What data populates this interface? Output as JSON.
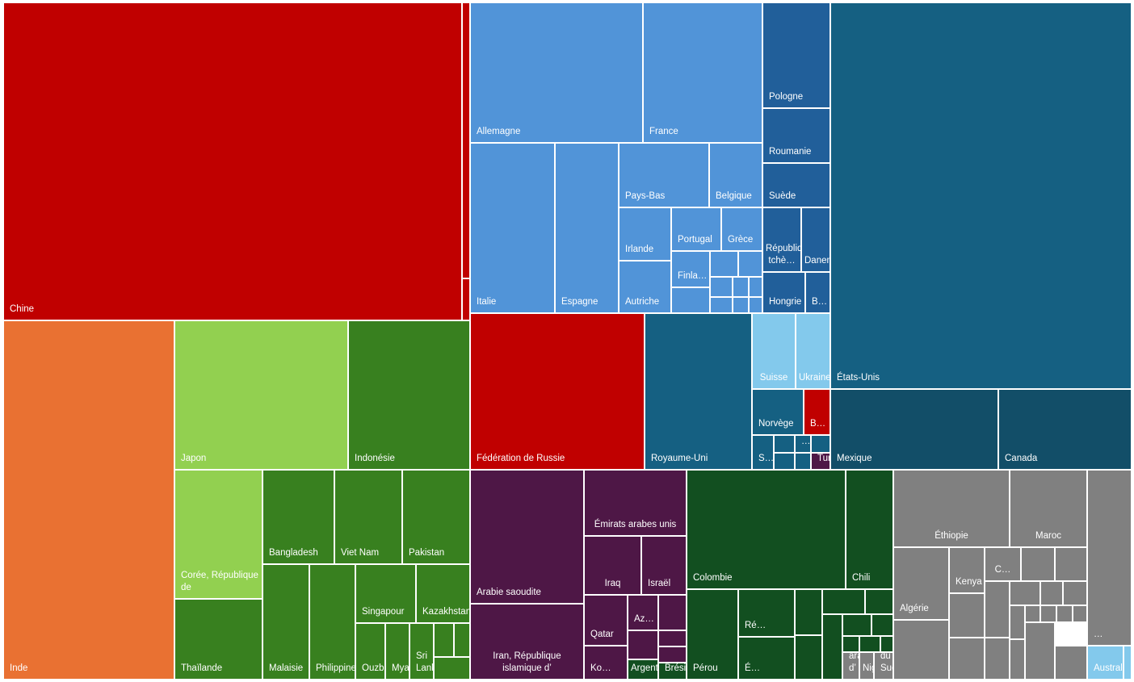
{
  "chart_data": {
    "type": "treemap",
    "colors": {
      "red": "#c00000",
      "orange": "#e97132",
      "lightgreen": "#92d050",
      "green": "#38801f",
      "lightblue": "#5194d8",
      "blue": "#215f9a",
      "teal": "#156082",
      "navy": "#124e68",
      "purple": "#4e1746",
      "darkgreen": "#124f20",
      "gray": "#808080",
      "skyblue": "#83c9ec"
    },
    "cells": [
      {
        "label": "Chine",
        "color": "red"
      },
      {
        "label": "",
        "color": "red"
      },
      {
        "label": "",
        "color": "red"
      },
      {
        "label": "Inde",
        "color": "orange"
      },
      {
        "label": "Japon",
        "color": "lightgreen"
      },
      {
        "label": "Indonésie",
        "color": "green"
      },
      {
        "label": "Corée, République de",
        "color": "lightgreen"
      },
      {
        "label": "Thaïlande",
        "color": "green"
      },
      {
        "label": "Bangladesh",
        "color": "green"
      },
      {
        "label": "Viet Nam",
        "color": "green"
      },
      {
        "label": "Pakistan",
        "color": "green"
      },
      {
        "label": "Malaisie",
        "color": "green"
      },
      {
        "label": "Philippines",
        "color": "green"
      },
      {
        "label": "Singapour",
        "color": "green"
      },
      {
        "label": "Kazakhstan",
        "color": "green"
      },
      {
        "label": "Ouzbé…",
        "color": "green"
      },
      {
        "label": "Mya…",
        "color": "green"
      },
      {
        "label": "Sri Lanka",
        "color": "green"
      },
      {
        "label": "",
        "color": "green"
      },
      {
        "label": "",
        "color": "green"
      },
      {
        "label": "",
        "color": "green"
      },
      {
        "label": "Allemagne",
        "color": "lightblue"
      },
      {
        "label": "France",
        "color": "lightblue"
      },
      {
        "label": "Italie",
        "color": "lightblue"
      },
      {
        "label": "Espagne",
        "color": "lightblue"
      },
      {
        "label": "Pays-Bas",
        "color": "lightblue"
      },
      {
        "label": "Belgique",
        "color": "lightblue"
      },
      {
        "label": "Irlande",
        "color": "lightblue"
      },
      {
        "label": "Autriche",
        "color": "lightblue"
      },
      {
        "label": "Portugal",
        "color": "lightblue"
      },
      {
        "label": "Grèce",
        "color": "lightblue"
      },
      {
        "label": "Finla…",
        "color": "lightblue"
      },
      {
        "label": "",
        "color": "lightblue"
      },
      {
        "label": "",
        "color": "lightblue"
      },
      {
        "label": "",
        "color": "lightblue"
      },
      {
        "label": "",
        "color": "lightblue"
      },
      {
        "label": "",
        "color": "lightblue"
      },
      {
        "label": "",
        "color": "lightblue"
      },
      {
        "label": "",
        "color": "lightblue"
      },
      {
        "label": "",
        "color": "lightblue"
      },
      {
        "label": "",
        "color": "lightblue"
      },
      {
        "label": "Pologne",
        "color": "blue"
      },
      {
        "label": "Roumanie",
        "color": "blue"
      },
      {
        "label": "Suède",
        "color": "blue"
      },
      {
        "label": "République tchè…",
        "color": "blue"
      },
      {
        "label": "Danemark",
        "color": "blue"
      },
      {
        "label": "Hongrie",
        "color": "blue"
      },
      {
        "label": "B…",
        "color": "blue"
      },
      {
        "label": "États-Unis",
        "color": "teal"
      },
      {
        "label": "Mexique",
        "color": "navy"
      },
      {
        "label": "Canada",
        "color": "navy"
      },
      {
        "label": "Fédération de Russie",
        "color": "red"
      },
      {
        "label": "Royaume-Uni",
        "color": "teal"
      },
      {
        "label": "Suisse",
        "color": "skyblue"
      },
      {
        "label": "Ukraine",
        "color": "skyblue"
      },
      {
        "label": "Norvège",
        "color": "teal"
      },
      {
        "label": "B…",
        "color": "red"
      },
      {
        "label": "S…",
        "color": "teal"
      },
      {
        "label": "",
        "color": "teal"
      },
      {
        "label": "",
        "color": "teal"
      },
      {
        "label": "…",
        "color": "teal"
      },
      {
        "label": "",
        "color": "teal"
      },
      {
        "label": "",
        "color": "teal"
      },
      {
        "label": "Turquie",
        "color": "purple"
      },
      {
        "label": "Arabie saoudite",
        "color": "purple"
      },
      {
        "label": "Iran, République islamique d’",
        "color": "purple"
      },
      {
        "label": "Émirats arabes unis",
        "color": "purple"
      },
      {
        "label": "Iraq",
        "color": "purple"
      },
      {
        "label": "Israël",
        "color": "purple"
      },
      {
        "label": "Qatar",
        "color": "purple"
      },
      {
        "label": "Ko…",
        "color": "purple"
      },
      {
        "label": "Az…",
        "color": "purple"
      },
      {
        "label": "",
        "color": "purple"
      },
      {
        "label": "",
        "color": "purple"
      },
      {
        "label": "",
        "color": "purple"
      },
      {
        "label": "",
        "color": "purple"
      },
      {
        "label": "Brésil",
        "color": "darkgreen"
      },
      {
        "label": "Argentine",
        "color": "darkgreen"
      },
      {
        "label": "Colombie",
        "color": "darkgreen"
      },
      {
        "label": "Chili",
        "color": "darkgreen"
      },
      {
        "label": "Pérou",
        "color": "darkgreen"
      },
      {
        "label": "Ré…",
        "color": "darkgreen"
      },
      {
        "label": "É…",
        "color": "darkgreen"
      },
      {
        "label": "",
        "color": "darkgreen"
      },
      {
        "label": "",
        "color": "darkgreen"
      },
      {
        "label": "",
        "color": "darkgreen"
      },
      {
        "label": "",
        "color": "darkgreen"
      },
      {
        "label": "",
        "color": "darkgreen"
      },
      {
        "label": "",
        "color": "darkgreen"
      },
      {
        "label": "",
        "color": "darkgreen"
      },
      {
        "label": "",
        "color": "darkgreen"
      },
      {
        "label": "",
        "color": "darkgreen"
      },
      {
        "label": "",
        "color": "darkgreen"
      },
      {
        "label": "Égypte, République arabe d’",
        "color": "gray"
      },
      {
        "label": "Nigéria",
        "color": "gray"
      },
      {
        "label": "Afrique du Sud",
        "color": "gray"
      },
      {
        "label": "Éthiopie",
        "color": "gray"
      },
      {
        "label": "Maroc",
        "color": "gray"
      },
      {
        "label": "Algérie",
        "color": "gray"
      },
      {
        "label": "Kenya",
        "color": "gray"
      },
      {
        "label": "",
        "color": "gray"
      },
      {
        "label": "",
        "color": "gray"
      },
      {
        "label": "",
        "color": "gray"
      },
      {
        "label": "C…",
        "color": "gray"
      },
      {
        "label": "",
        "color": "gray"
      },
      {
        "label": "",
        "color": "gray"
      },
      {
        "label": "",
        "color": "gray"
      },
      {
        "label": "",
        "color": "gray"
      },
      {
        "label": "",
        "color": "gray"
      },
      {
        "label": "",
        "color": "gray"
      },
      {
        "label": "",
        "color": "gray"
      },
      {
        "label": "",
        "color": "gray"
      },
      {
        "label": "",
        "color": "gray"
      },
      {
        "label": "",
        "color": "gray"
      },
      {
        "label": "",
        "color": "gray"
      },
      {
        "label": "",
        "color": "gray"
      },
      {
        "label": "",
        "color": "gray"
      },
      {
        "label": "",
        "color": "gray"
      },
      {
        "label": "",
        "color": "gray"
      },
      {
        "label": "…",
        "color": "gray"
      },
      {
        "label": "Australie",
        "color": "skyblue"
      },
      {
        "label": "",
        "color": "skyblue"
      },
      {
        "label": "",
        "color": "skyblue"
      }
    ]
  }
}
